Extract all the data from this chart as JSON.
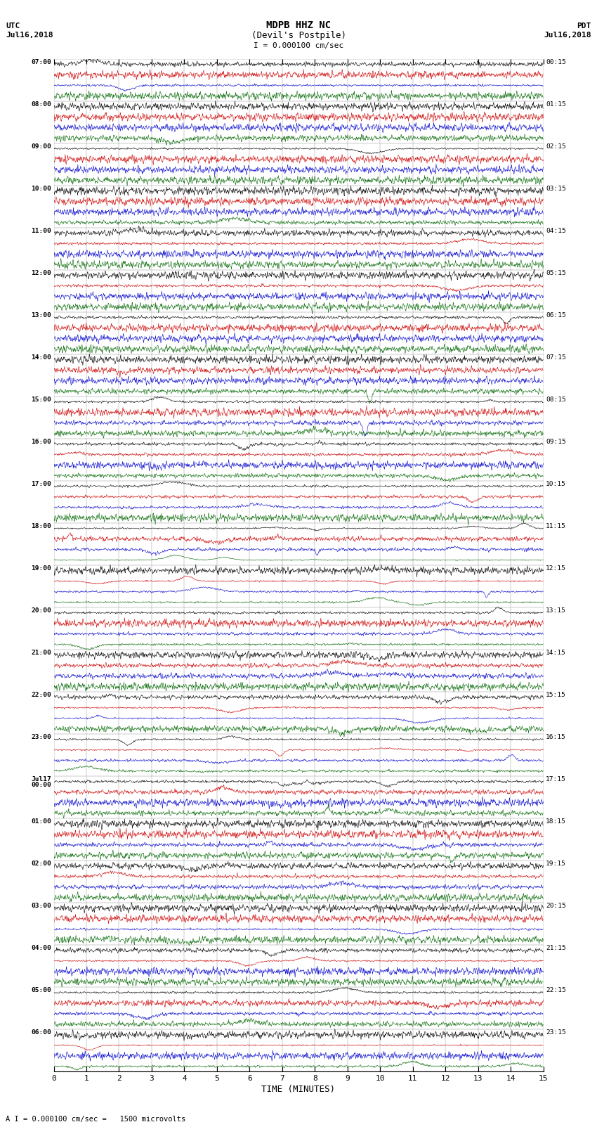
{
  "title_line1": "MDPB HHZ NC",
  "title_line2": "(Devil's Postpile)",
  "scale_label": "I = 0.000100 cm/sec",
  "footnote": "A I = 0.000100 cm/sec =   1500 microvolts",
  "xlabel": "TIME (MINUTES)",
  "bg_color": "#ffffff",
  "trace_colors": [
    "#000000",
    "#cc0000",
    "#0000cc",
    "#006600"
  ],
  "left_labels": [
    "07:00",
    "08:00",
    "09:00",
    "10:00",
    "11:00",
    "12:00",
    "13:00",
    "14:00",
    "15:00",
    "16:00",
    "17:00",
    "18:00",
    "19:00",
    "20:00",
    "21:00",
    "22:00",
    "23:00",
    "Jul17\n00:00",
    "01:00",
    "02:00",
    "03:00",
    "04:00",
    "05:00",
    "06:00"
  ],
  "right_labels": [
    "00:15",
    "01:15",
    "02:15",
    "03:15",
    "04:15",
    "05:15",
    "06:15",
    "07:15",
    "08:15",
    "09:15",
    "10:15",
    "11:15",
    "12:15",
    "13:15",
    "14:15",
    "15:15",
    "16:15",
    "17:15",
    "18:15",
    "19:15",
    "20:15",
    "21:15",
    "22:15",
    "23:15"
  ],
  "num_hour_blocks": 24,
  "traces_per_block": 4,
  "n_points": 1500,
  "figsize": [
    8.5,
    16.13
  ],
  "dpi": 100,
  "amplitude_by_block": [
    0.12,
    0.12,
    0.12,
    0.13,
    0.13,
    0.13,
    0.13,
    0.18,
    0.25,
    0.55,
    0.7,
    0.8,
    0.8,
    0.75,
    0.85,
    1.0,
    0.7,
    0.6,
    0.5,
    0.4,
    0.35,
    0.3,
    0.25,
    0.2
  ]
}
